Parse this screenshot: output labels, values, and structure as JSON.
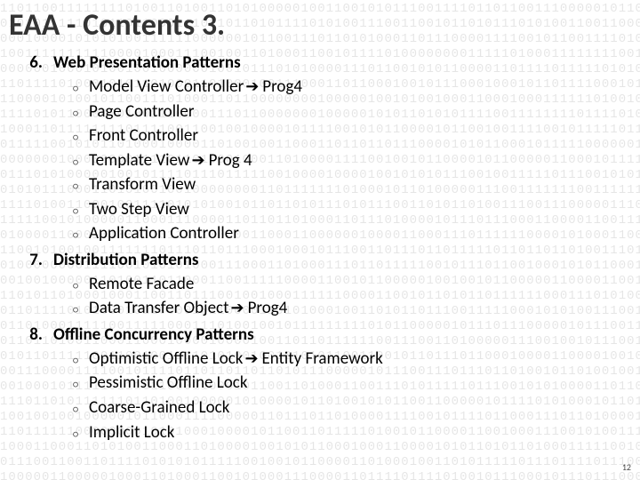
{
  "title": "EAA - Contents 3.",
  "pageNumber": "12",
  "arrowGlyph": "➔",
  "bulletGlyph": "○",
  "colors": {
    "textPrimary": "#000000",
    "titleColor": "#333333",
    "background": "#ffffff",
    "binaryColor": "rgba(0,0,0,0.10)"
  },
  "typography": {
    "titleFontSize": 34,
    "itemFontSize": 19,
    "binaryFontSize": 14
  },
  "sections": [
    {
      "number": "6.",
      "title": "Web Presentation Patterns",
      "items": [
        {
          "label": "Model View Controller",
          "suffix": "Prog4",
          "hasArrow": true
        },
        {
          "label": "Page Controller",
          "suffix": "",
          "hasArrow": false
        },
        {
          "label": "Front Controller",
          "suffix": "",
          "hasArrow": false
        },
        {
          "label": "Template View",
          "suffix": "Prog 4",
          "hasArrow": true
        },
        {
          "label": "Transform View",
          "suffix": "",
          "hasArrow": false
        },
        {
          "label": "Two Step View",
          "suffix": "",
          "hasArrow": false
        },
        {
          "label": "Application Controller",
          "suffix": "",
          "hasArrow": false
        }
      ]
    },
    {
      "number": "7.",
      "title": "Distribution Patterns",
      "items": [
        {
          "label": "Remote Facade",
          "suffix": "",
          "hasArrow": false
        },
        {
          "label": "Data Transfer Object",
          "suffix": "Prog4",
          "hasArrow": true
        }
      ]
    },
    {
      "number": "8.",
      "title": "Offline Concurrency Patterns",
      "items": [
        {
          "label": "Optimistic Offline Lock",
          "suffix": "Entity Framework",
          "hasArrow": true
        },
        {
          "label": "Pessimistic Offline Lock",
          "suffix": "",
          "hasArrow": false
        },
        {
          "label": "Coarse-Grained Lock",
          "suffix": "",
          "hasArrow": false
        },
        {
          "label": "Implicit Lock",
          "suffix": "",
          "hasArrow": false
        }
      ]
    }
  ]
}
